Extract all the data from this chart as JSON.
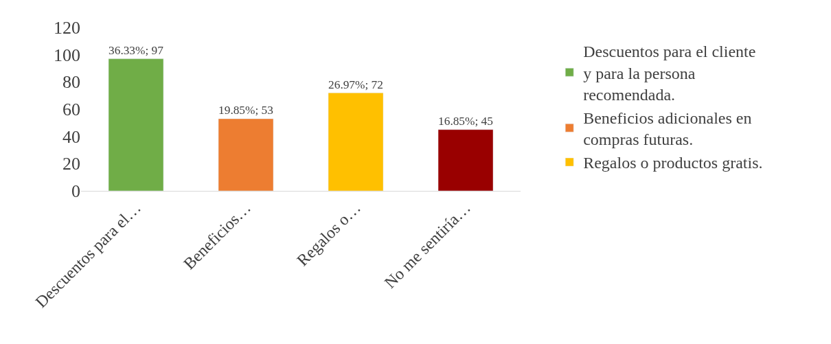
{
  "chart_data": {
    "type": "bar",
    "categories": [
      "Descuentos para el…",
      "Beneficios…",
      "Regalos o…",
      "No me sentiría…"
    ],
    "series": [
      {
        "name": "Descuentos para el cliente y para la persona recomendada.",
        "color": "#70ad47",
        "values": [
          97,
          null,
          null,
          null
        ],
        "value_labels": [
          "36.33%; 97",
          null,
          null,
          null
        ]
      },
      {
        "name": "Beneficios adicionales en compras futuras.",
        "color": "#ed7d31",
        "values": [
          null,
          53,
          null,
          null
        ],
        "value_labels": [
          null,
          "19.85%; 53",
          null,
          null
        ]
      },
      {
        "name": "Regalos o productos gratis.",
        "color": "#ffc000",
        "values": [
          null,
          null,
          72,
          null
        ],
        "value_labels": [
          null,
          null,
          "26.97%; 72",
          null
        ]
      },
      {
        "color": "#990000",
        "values": [
          null,
          null,
          null,
          45
        ],
        "value_labels": [
          null,
          null,
          null,
          "16.85%; 45"
        ]
      }
    ],
    "ylim": [
      0,
      120
    ],
    "yticks": [
      0,
      20,
      40,
      60,
      80,
      100,
      120
    ],
    "legend": "right"
  }
}
